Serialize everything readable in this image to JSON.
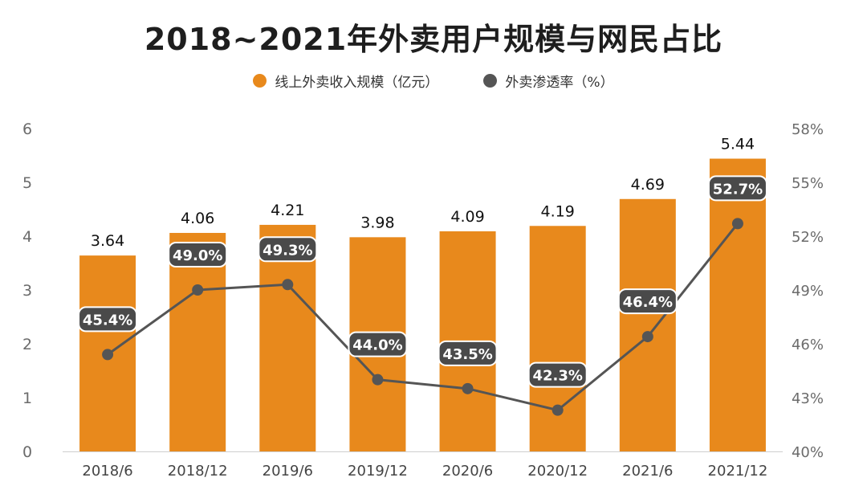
{
  "colors": {
    "bar": "#E8891C",
    "line": "#555555",
    "axis_text": "#6b6b6b",
    "label_text": "#111111",
    "badge_bg": "#4a4a4a",
    "badge_text": "#ffffff"
  },
  "chart_data": {
    "type": "bar",
    "title": "2018~2021年外卖用户规模与网民占比",
    "categories": [
      "2018/6",
      "2018/12",
      "2019/6",
      "2019/12",
      "2020/6",
      "2020/12",
      "2021/6",
      "2021/12"
    ],
    "series": [
      {
        "name": "线上外卖收入规模（亿元）",
        "type": "bar",
        "axis": "left",
        "values": [
          3.64,
          4.06,
          4.21,
          3.98,
          4.09,
          4.19,
          4.69,
          5.44
        ],
        "labels": [
          "3.64",
          "4.06",
          "4.21",
          "3.98",
          "4.09",
          "4.19",
          "4.69",
          "5.44"
        ]
      },
      {
        "name": "外卖渗透率（%）",
        "type": "line",
        "axis": "right",
        "values": [
          45.4,
          49.0,
          49.3,
          44.0,
          43.5,
          42.3,
          46.4,
          52.7
        ],
        "labels": [
          "45.4%",
          "49.0%",
          "49.3%",
          "44.0%",
          "43.5%",
          "42.3%",
          "46.4%",
          "52.7%"
        ]
      }
    ],
    "ylim": [
      0,
      6
    ],
    "y_ticks": [
      "0",
      "1",
      "2",
      "3",
      "4",
      "5",
      "6"
    ],
    "y2lim": [
      40,
      58
    ],
    "y2_ticks": [
      "40%",
      "43%",
      "46%",
      "49%",
      "52%",
      "55%",
      "58%"
    ],
    "xlabel": "",
    "ylabel": "",
    "grid": false,
    "legend": "top-center"
  }
}
